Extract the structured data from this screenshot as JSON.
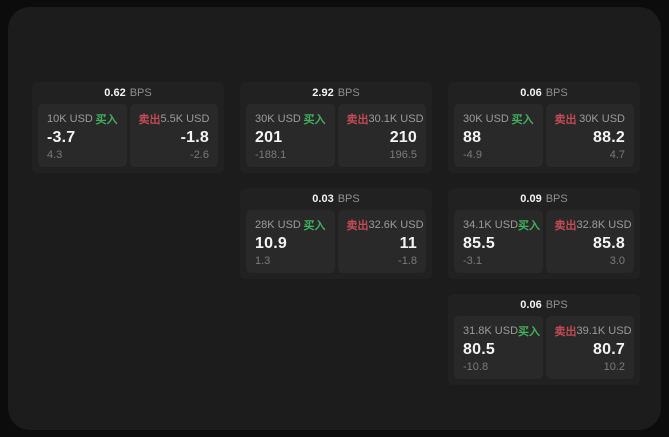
{
  "labels": {
    "bps_unit": "BPS",
    "buy": "买入",
    "sell": "卖出"
  },
  "colors": {
    "buy_green": "#41b05e",
    "sell_red": "#c24a55",
    "surface": "#1c1c1c",
    "card": "#212121",
    "panel": "#292929"
  },
  "cards": [
    {
      "bps": "0.62",
      "buy": {
        "amount": "10K USD",
        "value": "-3.7",
        "sub": "4.3"
      },
      "sell": {
        "amount": "5.5K USD",
        "value": "-1.8",
        "sub": "-2.6"
      }
    },
    {
      "bps": "2.92",
      "buy": {
        "amount": "30K USD",
        "value": "201",
        "sub": "-188.1"
      },
      "sell": {
        "amount": "30.1K USD",
        "value": "210",
        "sub": "196.5"
      }
    },
    {
      "bps": "0.06",
      "buy": {
        "amount": "30K USD",
        "value": "88",
        "sub": "-4.9"
      },
      "sell": {
        "amount": "30K USD",
        "value": "88.2",
        "sub": "4.7"
      }
    },
    {
      "bps": "0.03",
      "buy": {
        "amount": "28K USD",
        "value": "10.9",
        "sub": "1.3"
      },
      "sell": {
        "amount": "32.6K USD",
        "value": "11",
        "sub": "-1.8"
      }
    },
    {
      "bps": "0.09",
      "buy": {
        "amount": "34.1K USD",
        "value": "85.5",
        "sub": "-3.1"
      },
      "sell": {
        "amount": "32.8K USD",
        "value": "85.8",
        "sub": "3.0"
      }
    },
    {
      "bps": "0.06",
      "buy": {
        "amount": "31.8K USD",
        "value": "80.5",
        "sub": "-10.8"
      },
      "sell": {
        "amount": "39.1K USD",
        "value": "80.7",
        "sub": "10.2"
      }
    }
  ]
}
